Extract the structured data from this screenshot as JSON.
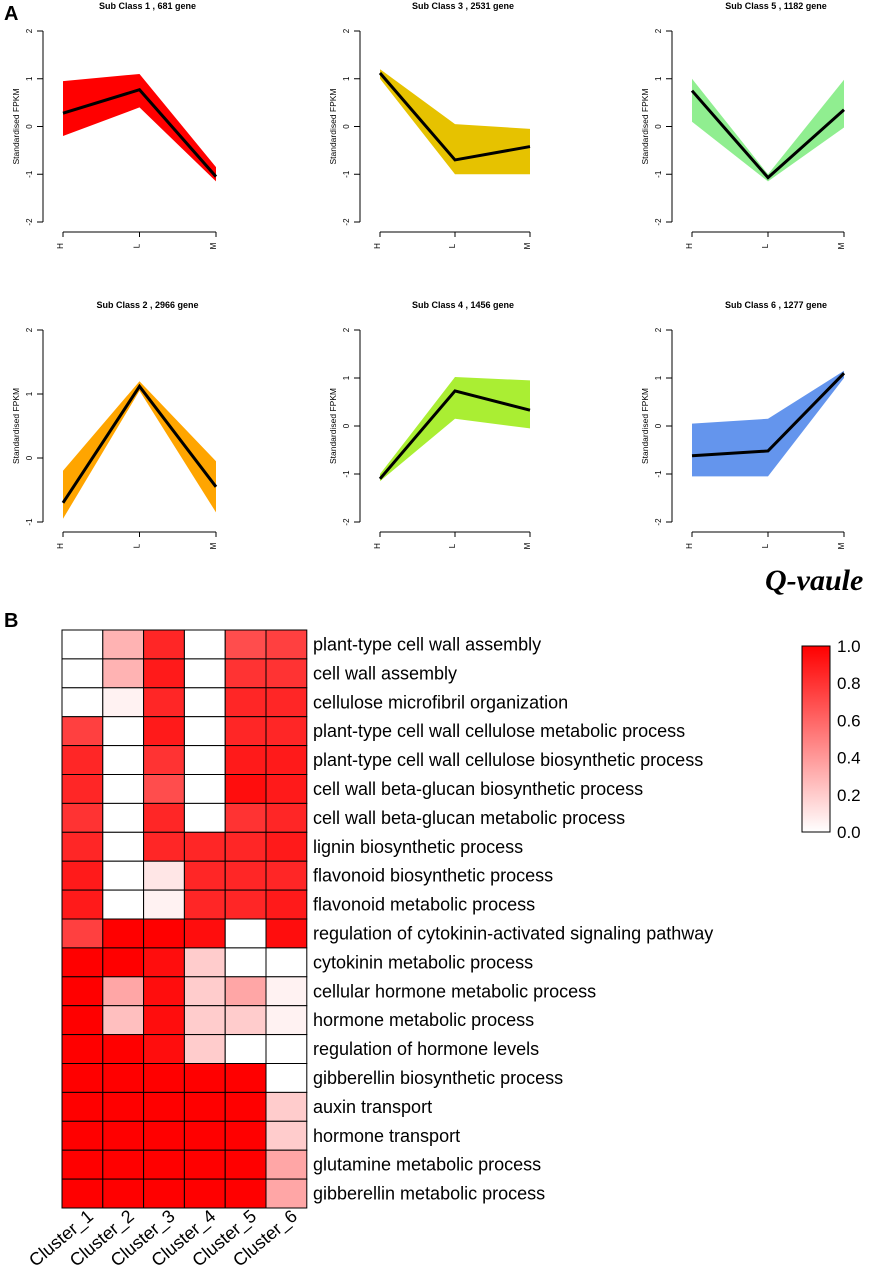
{
  "panel_labels": {
    "a": "A",
    "b": "B"
  },
  "chart_data": [
    {
      "type": "line",
      "panel": "A",
      "title": "Sub Class  1  , 681 gene",
      "ylabel": "Standardised FPKM",
      "categories": [
        "H",
        "L",
        "M"
      ],
      "ylim": [
        -2,
        2
      ],
      "yticks": [
        "-2",
        "-1",
        "0",
        "1",
        "2"
      ],
      "color": "#ff0000",
      "band_upper": [
        0.95,
        1.1,
        -0.85
      ],
      "band_lower": [
        -0.2,
        0.4,
        -1.15
      ],
      "values": [
        0.28,
        0.77,
        -1.05
      ]
    },
    {
      "type": "line",
      "panel": "A",
      "title": "Sub Class  3  , 2531 gene",
      "ylabel": "Standardised FPKM",
      "categories": [
        "H",
        "L",
        "M"
      ],
      "ylim": [
        -2,
        2
      ],
      "yticks": [
        "-2",
        "-1",
        "0",
        "1",
        "2"
      ],
      "color": "#e6c200",
      "band_upper": [
        1.2,
        0.05,
        -0.05
      ],
      "band_lower": [
        1.0,
        -1.0,
        -1.0
      ],
      "values": [
        1.12,
        -0.7,
        -0.42
      ]
    },
    {
      "type": "line",
      "panel": "A",
      "title": "Sub Class  5  , 1182 gene",
      "ylabel": "Standardised FPKM",
      "categories": [
        "H",
        "L",
        "M"
      ],
      "ylim": [
        -2,
        2
      ],
      "yticks": [
        "-2",
        "-1",
        "0",
        "1",
        "2"
      ],
      "color": "#90ee90",
      "band_upper": [
        1.0,
        -1.0,
        0.98
      ],
      "band_lower": [
        0.1,
        -1.15,
        -0.02
      ],
      "values": [
        0.75,
        -1.07,
        0.35
      ]
    },
    {
      "type": "line",
      "panel": "A",
      "title": "Sub Class  2  , 2966 gene",
      "ylabel": "Standardised FPKM",
      "categories": [
        "H",
        "L",
        "M"
      ],
      "ylim": [
        -1,
        2
      ],
      "yticks": [
        "-1",
        "0",
        "1",
        "2"
      ],
      "color": "#ffa500",
      "band_upper": [
        -0.2,
        1.2,
        -0.05
      ],
      "band_lower": [
        -0.95,
        1.05,
        -0.85
      ],
      "values": [
        -0.7,
        1.12,
        -0.45
      ]
    },
    {
      "type": "line",
      "panel": "A",
      "title": "Sub Class  4  , 1456 gene",
      "ylabel": "Standardised FPKM",
      "categories": [
        "H",
        "L",
        "M"
      ],
      "ylim": [
        -2,
        2
      ],
      "yticks": [
        "-2",
        "-1",
        "0",
        "1",
        "2"
      ],
      "color": "#aaee33",
      "band_upper": [
        -1.0,
        1.02,
        0.95
      ],
      "band_lower": [
        -1.15,
        0.15,
        -0.05
      ],
      "values": [
        -1.1,
        0.73,
        0.33
      ]
    },
    {
      "type": "line",
      "panel": "A",
      "title": "Sub Class  6  , 1277 gene",
      "ylabel": "Standardised FPKM",
      "categories": [
        "H",
        "L",
        "M"
      ],
      "ylim": [
        -2,
        2
      ],
      "yticks": [
        "-2",
        "-1",
        "0",
        "1",
        "2"
      ],
      "color": "#6495ed",
      "band_upper": [
        0.05,
        0.15,
        1.15
      ],
      "band_lower": [
        -1.05,
        -1.05,
        1.0
      ],
      "values": [
        -0.62,
        -0.52,
        1.1
      ]
    },
    {
      "type": "heatmap",
      "panel": "B",
      "legend_title": "Q-vaule",
      "legend_ticks": [
        "1.0",
        "0.8",
        "0.6",
        "0.4",
        "0.2",
        "0.0"
      ],
      "legend_range": [
        0,
        1
      ],
      "columns": [
        "Cluster_1",
        "Cluster_2",
        "Cluster_3",
        "Cluster_4",
        "Cluster_5",
        "Cluster_6"
      ],
      "rows": [
        {
          "term": "plant-type cell wall assembly",
          "values": [
            0.0,
            0.3,
            0.85,
            0.0,
            0.7,
            0.75
          ]
        },
        {
          "term": "cell wall assembly",
          "values": [
            0.0,
            0.3,
            0.9,
            0.0,
            0.8,
            0.8
          ]
        },
        {
          "term": "cellulose microfibril organization",
          "values": [
            0.0,
            0.05,
            0.85,
            0.0,
            0.85,
            0.85
          ]
        },
        {
          "term": "plant-type cell wall cellulose metabolic process",
          "values": [
            0.75,
            0.0,
            0.9,
            0.0,
            0.85,
            0.85
          ]
        },
        {
          "term": "plant-type cell wall cellulose biosynthetic process",
          "values": [
            0.85,
            0.0,
            0.8,
            0.0,
            0.9,
            0.9
          ]
        },
        {
          "term": "cell wall beta-glucan biosynthetic process",
          "values": [
            0.85,
            0.0,
            0.7,
            0.0,
            0.95,
            0.9
          ]
        },
        {
          "term": "cell wall beta-glucan metabolic process",
          "values": [
            0.8,
            0.0,
            0.85,
            0.0,
            0.8,
            0.85
          ]
        },
        {
          "term": "lignin biosynthetic process",
          "values": [
            0.85,
            0.0,
            0.85,
            0.85,
            0.85,
            0.9
          ]
        },
        {
          "term": "flavonoid biosynthetic process",
          "values": [
            0.9,
            0.0,
            0.1,
            0.85,
            0.85,
            0.85
          ]
        },
        {
          "term": "flavonoid metabolic process",
          "values": [
            0.9,
            0.0,
            0.05,
            0.85,
            0.85,
            0.9
          ]
        },
        {
          "term": "regulation of cytokinin-activated signaling pathway",
          "values": [
            0.75,
            1.0,
            1.0,
            0.95,
            0.0,
            0.95
          ]
        },
        {
          "term": "cytokinin metabolic process",
          "values": [
            1.0,
            1.0,
            0.95,
            0.2,
            0.0,
            0.0
          ]
        },
        {
          "term": "cellular hormone metabolic process",
          "values": [
            1.0,
            0.35,
            0.95,
            0.2,
            0.35,
            0.05
          ]
        },
        {
          "term": "hormone metabolic process",
          "values": [
            1.0,
            0.25,
            0.95,
            0.2,
            0.2,
            0.05
          ]
        },
        {
          "term": "regulation of hormone levels",
          "values": [
            1.0,
            1.0,
            0.95,
            0.2,
            0.0,
            0.0
          ]
        },
        {
          "term": "gibberellin biosynthetic process",
          "values": [
            1.0,
            1.0,
            1.0,
            1.0,
            1.0,
            0.0
          ]
        },
        {
          "term": "auxin transport",
          "values": [
            1.0,
            1.0,
            1.0,
            1.0,
            1.0,
            0.2
          ]
        },
        {
          "term": "hormone transport",
          "values": [
            1.0,
            1.0,
            1.0,
            1.0,
            1.0,
            0.2
          ]
        },
        {
          "term": "glutamine metabolic process",
          "values": [
            1.0,
            1.0,
            1.0,
            1.0,
            1.0,
            0.35
          ]
        },
        {
          "term": "gibberellin metabolic process",
          "values": [
            1.0,
            1.0,
            1.0,
            1.0,
            1.0,
            0.35
          ]
        }
      ]
    }
  ]
}
